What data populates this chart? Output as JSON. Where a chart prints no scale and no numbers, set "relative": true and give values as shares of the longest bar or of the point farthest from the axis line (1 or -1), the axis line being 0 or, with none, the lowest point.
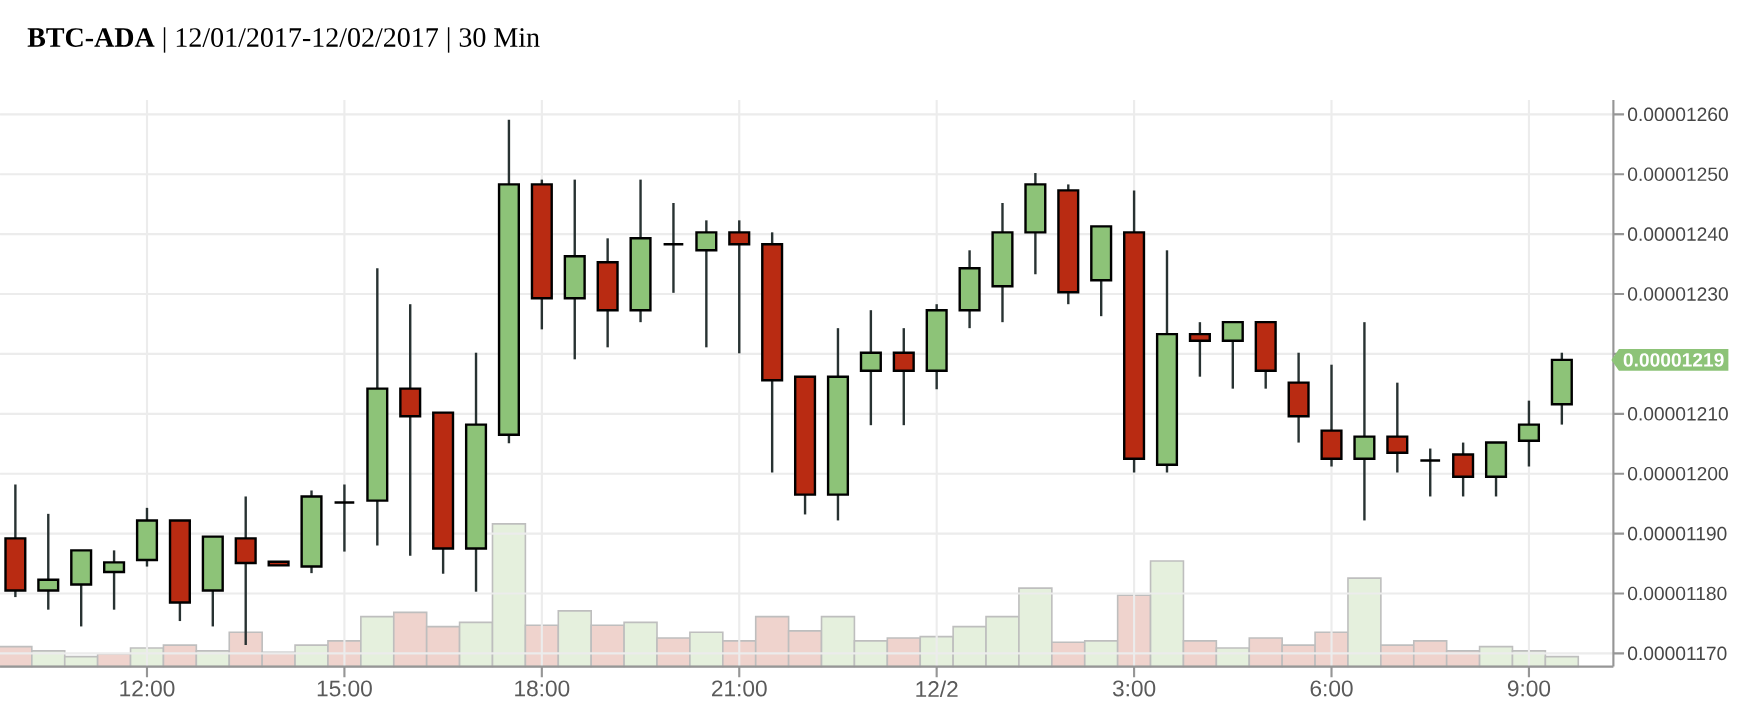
{
  "chart_data": [
    {
      "type": "candlestick",
      "title": "**BTC-ADA** | 12/01/2017-12/02/2017 | 30 Min",
      "x": [
        "2017-12-01T10:00",
        "2017-12-01T10:30",
        "2017-12-01T11:00",
        "2017-12-01T11:30",
        "2017-12-01T12:00",
        "2017-12-01T12:30",
        "2017-12-01T13:00",
        "2017-12-01T13:30",
        "2017-12-01T14:00",
        "2017-12-01T14:30",
        "2017-12-01T15:00",
        "2017-12-01T15:30",
        "2017-12-01T16:00",
        "2017-12-01T16:30",
        "2017-12-01T17:00",
        "2017-12-01T17:30",
        "2017-12-01T18:00",
        "2017-12-01T18:30",
        "2017-12-01T19:00",
        "2017-12-01T19:30",
        "2017-12-01T20:00",
        "2017-12-01T20:30",
        "2017-12-01T21:00",
        "2017-12-01T21:30",
        "2017-12-01T22:00",
        "2017-12-01T22:30",
        "2017-12-01T23:00",
        "2017-12-01T23:30",
        "2017-12-02T00:00",
        "2017-12-02T00:30",
        "2017-12-02T01:00",
        "2017-12-02T01:30",
        "2017-12-02T02:00",
        "2017-12-02T02:30",
        "2017-12-02T03:00",
        "2017-12-02T03:30",
        "2017-12-02T04:00",
        "2017-12-02T04:30",
        "2017-12-02T05:00",
        "2017-12-02T05:30",
        "2017-12-02T06:00",
        "2017-12-02T06:30",
        "2017-12-02T07:00",
        "2017-12-02T07:30",
        "2017-12-02T08:00",
        "2017-12-02T08:30",
        "2017-12-02T09:00",
        "2017-12-02T09:30"
      ],
      "ohlc": [
        [
          1.1892e-05,
          1.1982e-05,
          1.1794e-05,
          1.1805e-05
        ],
        [
          1.1805e-05,
          1.1933e-05,
          1.1773e-05,
          1.1823e-05
        ],
        [
          1.1815e-05,
          1.1872e-05,
          1.1745e-05,
          1.1872e-05
        ],
        [
          1.1836e-05,
          1.1872e-05,
          1.1773e-05,
          1.1852e-05
        ],
        [
          1.1856e-05,
          1.1943e-05,
          1.1845e-05,
          1.1922e-05
        ],
        [
          1.1922e-05,
          1.1922e-05,
          1.1754e-05,
          1.1785e-05
        ],
        [
          1.1805e-05,
          1.1895e-05,
          1.1745e-05,
          1.1895e-05
        ],
        [
          1.1892e-05,
          1.1962e-05,
          1.1714e-05,
          1.1851e-05
        ],
        [
          1.1853e-05,
          1.1853e-05,
          1.1847e-05,
          1.1847e-05
        ],
        [
          1.1845e-05,
          1.1972e-05,
          1.1834e-05,
          1.1962e-05
        ],
        [
          1.1952e-05,
          1.1982e-05,
          1.187e-05,
          1.1952e-05
        ],
        [
          1.1955e-05,
          1.2343e-05,
          1.188e-05,
          1.2142e-05
        ],
        [
          1.2142e-05,
          1.2283e-05,
          1.1863e-05,
          1.2096e-05
        ],
        [
          1.2102e-05,
          1.2102e-05,
          1.1833e-05,
          1.1875e-05
        ],
        [
          1.1875e-05,
          1.2202e-05,
          1.1803e-05,
          1.2082e-05
        ],
        [
          1.2065e-05,
          1.2591e-05,
          1.2051e-05,
          1.2483e-05
        ],
        [
          1.2483e-05,
          1.2491e-05,
          1.2241e-05,
          1.2293e-05
        ],
        [
          1.2293e-05,
          1.2491e-05,
          1.2191e-05,
          1.2363e-05
        ],
        [
          1.2353e-05,
          1.2393e-05,
          1.2211e-05,
          1.2273e-05
        ],
        [
          1.2273e-05,
          1.2491e-05,
          1.2253e-05,
          1.2393e-05
        ],
        [
          1.2383e-05,
          1.2452e-05,
          1.2302e-05,
          1.2383e-05
        ],
        [
          1.2373e-05,
          1.2423e-05,
          1.2211e-05,
          1.2403e-05
        ],
        [
          1.2403e-05,
          1.2423e-05,
          1.2201e-05,
          1.2383e-05
        ],
        [
          1.2383e-05,
          1.2403e-05,
          1.2002e-05,
          1.2156e-05
        ],
        [
          1.2162e-05,
          1.2162e-05,
          1.1932e-05,
          1.1965e-05
        ],
        [
          1.1965e-05,
          1.2243e-05,
          1.1922e-05,
          1.2162e-05
        ],
        [
          1.2172e-05,
          1.2273e-05,
          1.2081e-05,
          1.2202e-05
        ],
        [
          1.2202e-05,
          1.2243e-05,
          1.2081e-05,
          1.2172e-05
        ],
        [
          1.2172e-05,
          1.2283e-05,
          1.2141e-05,
          1.2273e-05
        ],
        [
          1.2273e-05,
          1.2373e-05,
          1.2243e-05,
          1.2343e-05
        ],
        [
          1.2313e-05,
          1.2452e-05,
          1.2253e-05,
          1.2403e-05
        ],
        [
          1.2403e-05,
          1.2502e-05,
          1.2333e-05,
          1.2483e-05
        ],
        [
          1.2473e-05,
          1.2483e-05,
          1.2283e-05,
          1.2303e-05
        ],
        [
          1.2323e-05,
          1.2413e-05,
          1.2263e-05,
          1.2413e-05
        ],
        [
          1.2403e-05,
          1.2473e-05,
          1.2002e-05,
          1.2025e-05
        ],
        [
          1.2015e-05,
          1.2373e-05,
          1.2002e-05,
          1.2233e-05
        ],
        [
          1.2233e-05,
          1.2253e-05,
          1.2162e-05,
          1.2222e-05
        ],
        [
          1.2222e-05,
          1.2253e-05,
          1.2142e-05,
          1.2253e-05
        ],
        [
          1.2253e-05,
          1.2253e-05,
          1.2142e-05,
          1.2172e-05
        ],
        [
          1.2152e-05,
          1.2202e-05,
          1.2052e-05,
          1.2096e-05
        ],
        [
          1.2072e-05,
          1.2182e-05,
          1.2012e-05,
          1.2025e-05
        ],
        [
          1.2025e-05,
          1.2253e-05,
          1.1922e-05,
          1.2062e-05
        ],
        [
          1.2062e-05,
          1.2152e-05,
          1.2002e-05,
          1.2035e-05
        ],
        [
          1.2022e-05,
          1.2042e-05,
          1.1962e-05,
          1.2022e-05
        ],
        [
          1.2032e-05,
          1.2052e-05,
          1.1962e-05,
          1.1995e-05
        ],
        [
          1.1995e-05,
          1.2052e-05,
          1.1962e-05,
          1.2052e-05
        ],
        [
          1.2055e-05,
          1.2122e-05,
          1.2012e-05,
          1.2082e-05
        ],
        [
          1.2116e-05,
          1.2202e-05,
          1.2082e-05,
          1.219e-05
        ]
      ],
      "colors": [
        "#b92b12",
        "#8dc378",
        "#8dc378",
        "#8dc378",
        "#8dc378",
        "#b92b12",
        "#8dc378",
        "#b92b12",
        "#b92b12",
        "#8dc378",
        "#000000",
        "#8dc378",
        "#b92b12",
        "#b92b12",
        "#8dc378",
        "#8dc378",
        "#b92b12",
        "#8dc378",
        "#b92b12",
        "#8dc378",
        "#000000",
        "#8dc378",
        "#b92b12",
        "#b92b12",
        "#b92b12",
        "#8dc378",
        "#8dc378",
        "#b92b12",
        "#8dc378",
        "#8dc378",
        "#8dc378",
        "#8dc378",
        "#b92b12",
        "#8dc378",
        "#b92b12",
        "#8dc378",
        "#b92b12",
        "#8dc378",
        "#b92b12",
        "#b92b12",
        "#b92b12",
        "#8dc378",
        "#b92b12",
        "#000000",
        "#b92b12",
        "#8dc378",
        "#8dc378",
        "#8dc378"
      ],
      "xlim": [
        "2017-12-01T09:46",
        "2017-12-02T10:17"
      ],
      "ylim": [
        1.1678e-05,
        1.2624e-05
      ],
      "xticks": [
        {
          "value": "2017-12-01T12:00",
          "label": "12:00"
        },
        {
          "value": "2017-12-01T15:00",
          "label": "15:00"
        },
        {
          "value": "2017-12-01T18:00",
          "label": "18:00"
        },
        {
          "value": "2017-12-01T21:00",
          "label": "21:00"
        },
        {
          "value": "2017-12-02T00:00",
          "label": "12/2"
        },
        {
          "value": "2017-12-02T03:00",
          "label": "3:00"
        },
        {
          "value": "2017-12-02T06:00",
          "label": "6:00"
        },
        {
          "value": "2017-12-02T09:00",
          "label": "9:00"
        }
      ],
      "yticks": [
        {
          "value": 1.17e-05,
          "label": "0.00001170"
        },
        {
          "value": 1.18e-05,
          "label": "0.00001180"
        },
        {
          "value": 1.19e-05,
          "label": "0.00001190"
        },
        {
          "value": 1.2e-05,
          "label": "0.00001200"
        },
        {
          "value": 1.21e-05,
          "label": "0.00001210"
        },
        {
          "value": 1.22e-05,
          "label": null
        },
        {
          "value": 1.23e-05,
          "label": "0.00001230"
        },
        {
          "value": 1.24e-05,
          "label": "0.00001240"
        },
        {
          "value": 1.25e-05,
          "label": "0.00001250"
        },
        {
          "value": 1.26e-05,
          "label": "0.00001260"
        }
      ],
      "grid": true,
      "annotations": [
        "0.00001219"
      ]
    },
    {
      "type": "bar",
      "relative": true,
      "categories": [
        null,
        null,
        null,
        null,
        null,
        null,
        null,
        null,
        null,
        null,
        null,
        null,
        null,
        null,
        null,
        null,
        null,
        null,
        null,
        null,
        null,
        null,
        null,
        null,
        null,
        null,
        null,
        null,
        null,
        null,
        null,
        null,
        null,
        null,
        null,
        null,
        null,
        null,
        null,
        null,
        null,
        null,
        null,
        null,
        null,
        null,
        null,
        null
      ],
      "values": [
        0.14,
        0.11,
        0.07,
        0.09,
        0.13,
        0.15,
        0.11,
        0.24,
        0.1,
        0.15,
        0.18,
        0.35,
        0.38,
        0.28,
        0.31,
        1,
        0.29,
        0.39,
        0.29,
        0.31,
        0.2,
        0.24,
        0.18,
        0.35,
        0.25,
        0.35,
        0.18,
        0.2,
        0.21,
        0.28,
        0.35,
        0.55,
        0.17,
        0.18,
        0.5,
        0.74,
        0.18,
        0.13,
        0.2,
        0.15,
        0.24,
        0.62,
        0.15,
        0.18,
        0.11,
        0.14,
        0.11,
        0.07
      ],
      "colors": [
        "#efd3cd",
        "#e5f0dd",
        "#e5f0dd",
        "#efd3cd",
        "#e5f0dd",
        "#efd3cd",
        "#e5f0dd",
        "#efd3cd",
        "#efd3cd",
        "#e5f0dd",
        "#efd3cd",
        "#e5f0dd",
        "#efd3cd",
        "#efd3cd",
        "#e5f0dd",
        "#e5f0dd",
        "#efd3cd",
        "#e5f0dd",
        "#efd3cd",
        "#e5f0dd",
        "#efd3cd",
        "#e5f0dd",
        "#efd3cd",
        "#efd3cd",
        "#efd3cd",
        "#e5f0dd",
        "#e5f0dd",
        "#efd3cd",
        "#e5f0dd",
        "#e5f0dd",
        "#e5f0dd",
        "#e5f0dd",
        "#efd3cd",
        "#e5f0dd",
        "#efd3cd",
        "#e5f0dd",
        "#efd3cd",
        "#e5f0dd",
        "#efd3cd",
        "#efd3cd",
        "#efd3cd",
        "#e5f0dd",
        "#efd3cd",
        "#efd3cd",
        "#efd3cd",
        "#e5f0dd",
        "#e5f0dd",
        "#e5f0dd"
      ]
    }
  ]
}
